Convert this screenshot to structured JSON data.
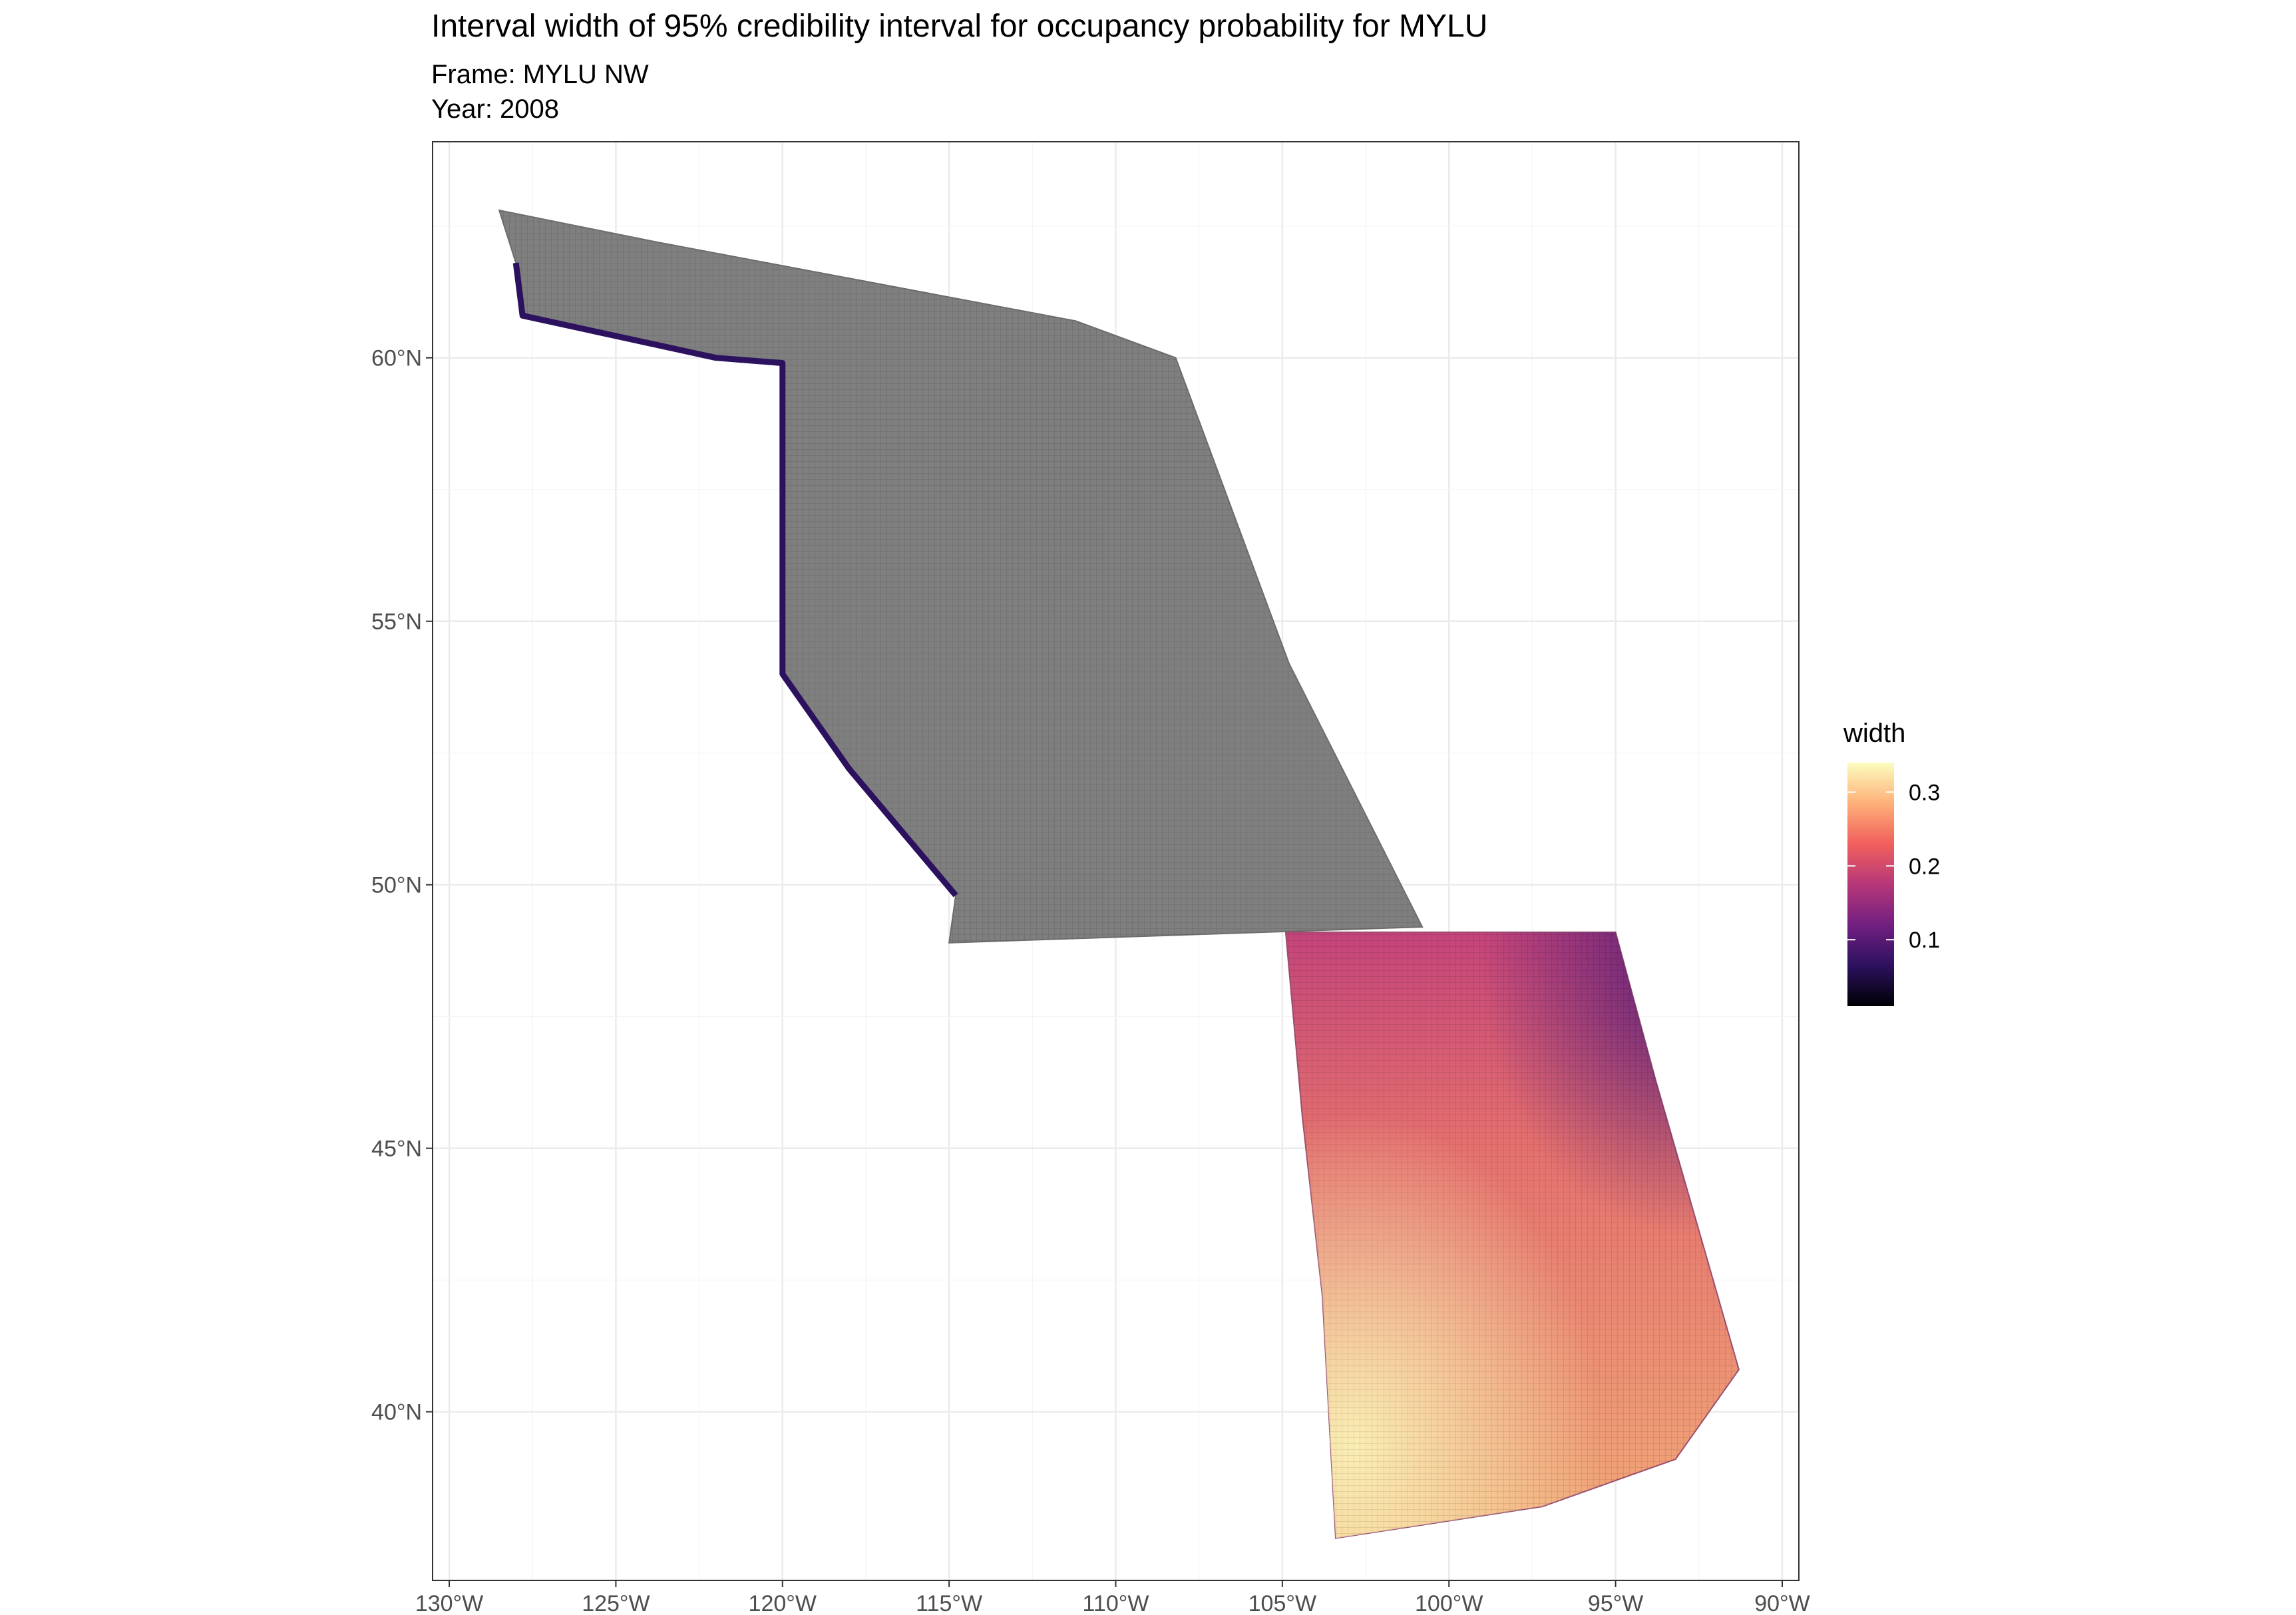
{
  "title": "Interval width of 95% credibility interval for occupancy probability for MYLU",
  "subtitle_frame": "Frame: MYLU NW",
  "subtitle_year": "Year: 2008",
  "chart_data": {
    "type": "heatmap",
    "xlim": [
      -130.5,
      -89.5
    ],
    "ylim": [
      36.8,
      64.1
    ],
    "x_ticks": [
      {
        "value": -130,
        "label": "130°W"
      },
      {
        "value": -125,
        "label": "125°W"
      },
      {
        "value": -120,
        "label": "120°W"
      },
      {
        "value": -115,
        "label": "115°W"
      },
      {
        "value": -110,
        "label": "110°W"
      },
      {
        "value": -105,
        "label": "105°W"
      },
      {
        "value": -100,
        "label": "100°W"
      },
      {
        "value": -95,
        "label": "95°W"
      },
      {
        "value": -90,
        "label": "90°W"
      }
    ],
    "y_ticks": [
      {
        "value": 40,
        "label": "40°N"
      },
      {
        "value": 45,
        "label": "45°N"
      },
      {
        "value": 50,
        "label": "50°N"
      },
      {
        "value": 55,
        "label": "55°N"
      },
      {
        "value": 60,
        "label": "60°N"
      }
    ],
    "grid": true,
    "legend": {
      "title": "width",
      "placement": "right",
      "range": [
        0.01,
        0.34
      ],
      "breaks": [
        {
          "value": 0.3,
          "label": "0.3"
        },
        {
          "value": 0.2,
          "label": "0.2"
        },
        {
          "value": 0.1,
          "label": "0.1"
        }
      ],
      "palette": "magma",
      "colors": [
        "#000004",
        "#2c115f",
        "#721f81",
        "#b73779",
        "#f1605d",
        "#feb078",
        "#fcfdbf"
      ]
    },
    "na_color": "#7f7f7f",
    "regions": [
      {
        "name": "northern region (no estimate)",
        "fill": "na",
        "outline": [
          [
            -128.5,
            62.8
          ],
          [
            -123.8,
            62.2
          ],
          [
            -111.2,
            60.7
          ],
          [
            -108.2,
            60.0
          ],
          [
            -104.8,
            54.2
          ],
          [
            -100.8,
            49.2
          ],
          [
            -115.0,
            48.9
          ],
          [
            -114.8,
            49.8
          ],
          [
            -118.0,
            52.2
          ],
          [
            -120.0,
            54.0
          ],
          [
            -120.0,
            59.9
          ],
          [
            -122.0,
            60.0
          ],
          [
            -127.8,
            60.8
          ],
          [
            -128.0,
            61.8
          ]
        ]
      },
      {
        "name": "northern region western margin",
        "fill": "value",
        "edge_values": [
          0.02,
          0.04,
          0.06,
          0.1,
          0.09
        ]
      },
      {
        "name": "southern region",
        "fill": "value",
        "outline": [
          [
            -104.9,
            49.1
          ],
          [
            -95.0,
            49.1
          ],
          [
            -93.8,
            46.3
          ],
          [
            -91.3,
            40.8
          ],
          [
            -93.2,
            39.1
          ],
          [
            -97.2,
            38.2
          ],
          [
            -103.4,
            37.6
          ],
          [
            -103.8,
            42.2
          ],
          [
            -104.4,
            45.6
          ]
        ],
        "value_pattern": "0.10 to 0.15 in the north-east near 48°N 95°W; about 0.20 to 0.24 in the north-west; rising to 0.30 to 0.34 across the south-west near 40°N 103°W"
      }
    ]
  }
}
